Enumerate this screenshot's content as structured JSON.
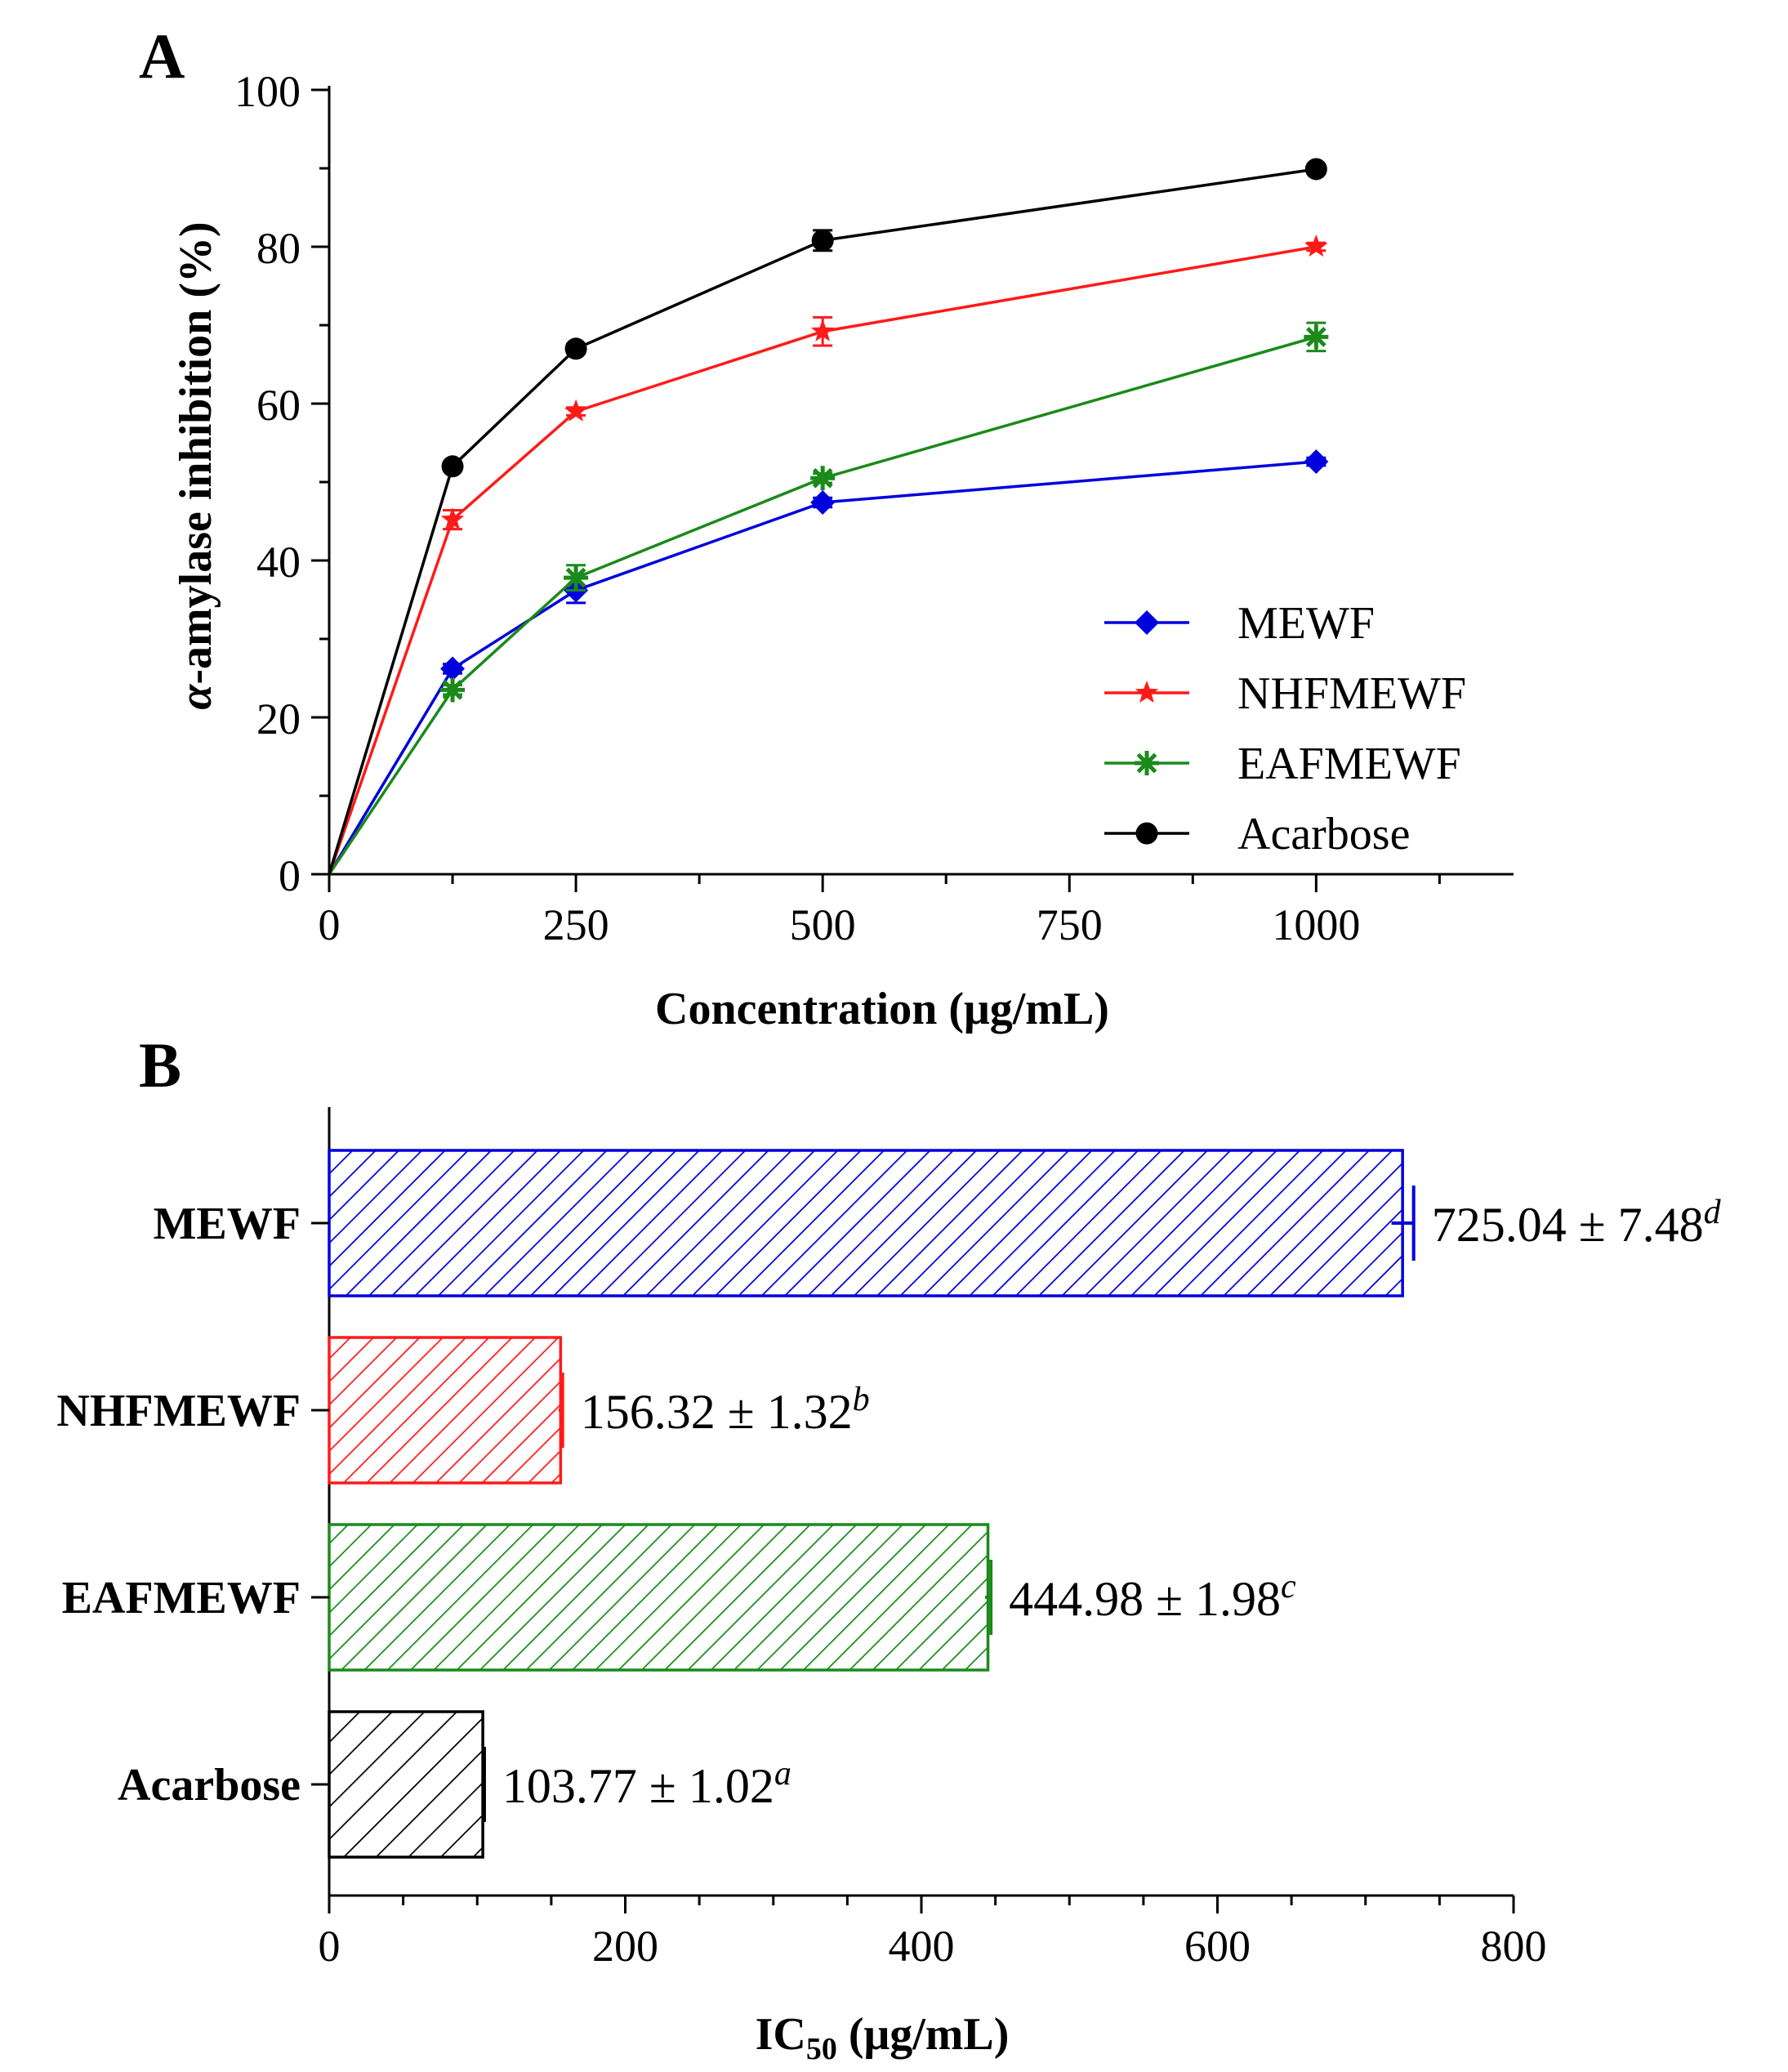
{
  "colors": {
    "MEWF": "#0000dd",
    "NHFMEWF": "#ff1a1a",
    "EAFMEWF": "#1a8a1a",
    "Acarbose": "#000000"
  },
  "chart_data": [
    {
      "panel": "A",
      "type": "line",
      "xlabel": "Concentration (μg/mL)",
      "ylabel_prefix": "α",
      "ylabel_rest": "-amylase inhibition (%)",
      "x": [
        0,
        125,
        250,
        500,
        1000
      ],
      "xlim": [
        0,
        1200
      ],
      "ylim": [
        0,
        100
      ],
      "xticks": [
        0,
        250,
        500,
        750,
        1000
      ],
      "xtick_labels": [
        "0",
        "250",
        "500",
        "750",
        "1000"
      ],
      "yticks": [
        0,
        20,
        40,
        60,
        80,
        100
      ],
      "ytick_labels": [
        "0",
        "20",
        "40",
        "60",
        "80",
        "100"
      ],
      "legend_position": "bottom-right",
      "series": [
        {
          "name": "MEWF",
          "marker": "diamond",
          "values": [
            0,
            26.2,
            36.2,
            47.4,
            52.6
          ],
          "errors": [
            0,
            0.6,
            1.6,
            0.6,
            0.5
          ]
        },
        {
          "name": "NHFMEWF",
          "marker": "star",
          "values": [
            0,
            45.2,
            59.0,
            69.2,
            80.0
          ],
          "errors": [
            0,
            1.2,
            0.5,
            1.8,
            0.5
          ]
        },
        {
          "name": "EAFMEWF",
          "marker": "asterisk",
          "values": [
            0,
            23.5,
            37.8,
            50.5,
            68.5
          ],
          "errors": [
            0,
            0.6,
            1.6,
            0.6,
            1.8
          ]
        },
        {
          "name": "Acarbose",
          "marker": "circle",
          "values": [
            0,
            52.0,
            67.0,
            80.8,
            89.9
          ],
          "errors": [
            0,
            0.5,
            0.6,
            1.3,
            0.5
          ]
        }
      ]
    },
    {
      "panel": "B",
      "type": "bar",
      "orientation": "horizontal",
      "xlabel_main": "IC",
      "xlabel_sub": "50",
      "xlabel_rest": " (μg/mL)",
      "categories": [
        "MEWF",
        "NHFMEWF",
        "EAFMEWF",
        "Acarbose"
      ],
      "values": [
        725.04,
        156.32,
        444.98,
        103.77
      ],
      "errors": [
        7.48,
        1.32,
        1.98,
        1.02
      ],
      "value_labels": [
        "725.04 ± 7.48",
        "156.32 ± 1.32",
        "444.98 ± 1.98",
        "103.77 ± 1.02"
      ],
      "significance": [
        "d",
        "b",
        "c",
        "a"
      ],
      "xlim": [
        0,
        800
      ],
      "xticks": [
        0,
        200,
        400,
        600,
        800
      ],
      "xtick_labels": [
        "0",
        "200",
        "400",
        "600",
        "800"
      ]
    }
  ]
}
